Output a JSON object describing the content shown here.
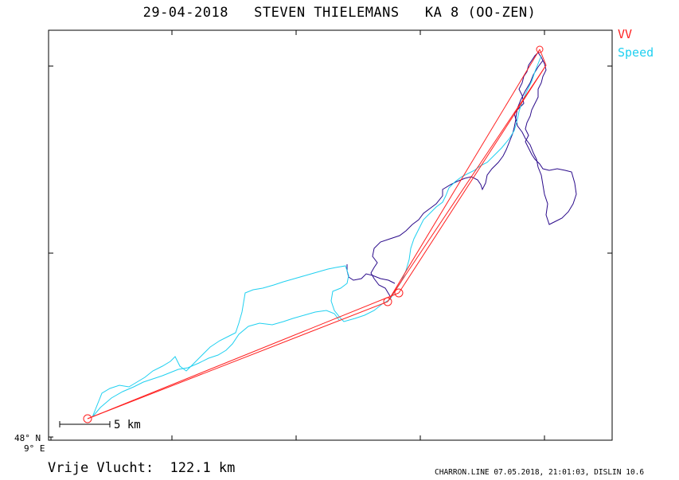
{
  "title": "29-04-2018   STEVEN THIELEMANS   KA 8 (OO-ZEN)",
  "legend": {
    "vv": {
      "label": "VV",
      "color": "#ff2020"
    },
    "speed": {
      "label": "Speed",
      "color": "#20d0f0"
    }
  },
  "axes": {
    "lat_label": "48° N",
    "lon_label": "9° E"
  },
  "scale_bar": {
    "label": "5 km"
  },
  "footer": {
    "distance": "Vrije Vlucht:  122.1 km",
    "credit": "CHARRON.LINE 07.05.2018, 21:01:03, DISLIN 10.6"
  },
  "colors": {
    "track_dark": "#2a0a8a",
    "track_speed": "#20d0f0",
    "vv_lines": "#ff2020"
  }
}
